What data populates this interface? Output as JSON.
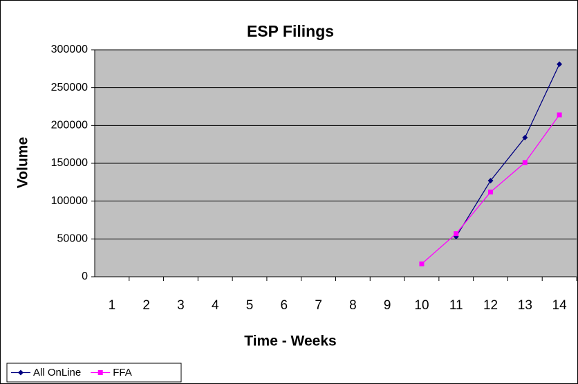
{
  "chart_data": {
    "type": "line",
    "title": "ESP Filings",
    "x_label": "Time - Weeks",
    "y_label": "Volume",
    "categories": [
      "1",
      "2",
      "3",
      "4",
      "5",
      "6",
      "7",
      "8",
      "9",
      "10",
      "11",
      "12",
      "13",
      "14"
    ],
    "series": [
      {
        "name": "All OnLine",
        "color": "#000080",
        "marker": "diamond",
        "values": [
          null,
          null,
          null,
          null,
          null,
          null,
          null,
          null,
          null,
          null,
          53000,
          127000,
          184000,
          281000
        ]
      },
      {
        "name": "FFA",
        "color": "#ff00ff",
        "marker": "square",
        "values": [
          null,
          null,
          null,
          null,
          null,
          null,
          null,
          null,
          null,
          17000,
          57000,
          112000,
          151000,
          214000
        ]
      }
    ],
    "ylim": [
      0,
      300000
    ],
    "yticks": [
      0,
      50000,
      100000,
      150000,
      200000,
      250000,
      300000
    ],
    "grid": true,
    "legend": "bottom-left"
  }
}
